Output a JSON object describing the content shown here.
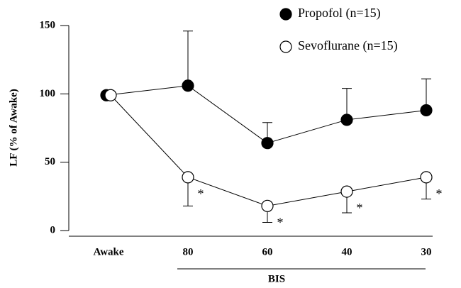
{
  "chart_data": {
    "type": "line",
    "ylabel": "LF (% of Awake)",
    "xlabel": "BIS",
    "categories": [
      "Awake",
      "80",
      "60",
      "40",
      "30"
    ],
    "ylim": [
      0,
      150
    ],
    "yticks": [
      0,
      50,
      100,
      150
    ],
    "series": [
      {
        "name": "Propofol (n=15)",
        "color": "#000000",
        "values": [
          99,
          106,
          64,
          81,
          88
        ],
        "errors": [
          null,
          40,
          15,
          23,
          23
        ],
        "error_direction": "up"
      },
      {
        "name": "Sevoflurane (n=15)",
        "color": "#ffffff",
        "values": [
          99,
          39,
          18,
          28.5,
          39
        ],
        "errors": [
          null,
          21,
          12,
          15.5,
          16
        ],
        "error_direction": "down",
        "markers": [
          null,
          "*",
          "*",
          "*",
          "*"
        ]
      }
    ]
  }
}
